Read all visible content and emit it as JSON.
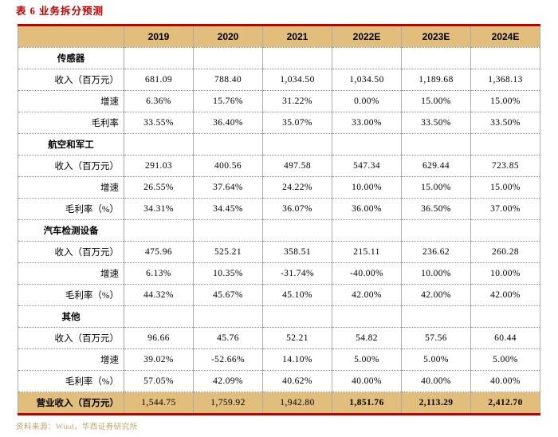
{
  "title": "表 6 业务拆分预测",
  "source_note": "资料来源：Wind，华西证券研究所",
  "colors": {
    "accent_red": "#C00000",
    "header_bg": "#E2BE7C",
    "source_text": "#BFA06A",
    "grid_vertical": "#ACACAC",
    "grid_horizontal": "#8F8F8F"
  },
  "table": {
    "columns": [
      "2019",
      "2020",
      "2021",
      "2022E",
      "2023E",
      "2024E"
    ],
    "rows": [
      {
        "type": "section",
        "label": "传感器",
        "values": [
          "",
          "",
          "",
          "",
          "",
          ""
        ]
      },
      {
        "type": "data",
        "label": "收入（百万元）",
        "values": [
          "681.09",
          "788.40",
          "1,034.50",
          "1,034.50",
          "1,189.68",
          "1,368.13"
        ]
      },
      {
        "type": "data",
        "label": "增速",
        "values": [
          "6.36%",
          "15.76%",
          "31.22%",
          "0.00%",
          "15.00%",
          "15.00%"
        ]
      },
      {
        "type": "data",
        "label": "毛利率",
        "values": [
          "33.55%",
          "36.40%",
          "35.07%",
          "33.00%",
          "33.50%",
          "33.50%"
        ]
      },
      {
        "type": "section",
        "label": "航空和军工",
        "values": [
          "",
          "",
          "",
          "",
          "",
          ""
        ]
      },
      {
        "type": "data",
        "label": "收入（百万元）",
        "values": [
          "291.03",
          "400.56",
          "497.58",
          "547.34",
          "629.44",
          "723.85"
        ]
      },
      {
        "type": "data",
        "label": "增速",
        "values": [
          "26.55%",
          "37.64%",
          "24.22%",
          "10.00%",
          "15.00%",
          "15.00%"
        ]
      },
      {
        "type": "data",
        "label": "毛利率（%）",
        "values": [
          "34.31%",
          "34.45%",
          "36.07%",
          "36.00%",
          "36.50%",
          "37.00%"
        ]
      },
      {
        "type": "section",
        "label": "汽车检测设备",
        "values": [
          "",
          "",
          "",
          "",
          "",
          ""
        ]
      },
      {
        "type": "data",
        "label": "收入（百万元）",
        "values": [
          "475.96",
          "525.21",
          "358.51",
          "215.11",
          "236.62",
          "260.28"
        ]
      },
      {
        "type": "data",
        "label": "增速",
        "values": [
          "6.13%",
          "10.35%",
          "-31.74%",
          "-40.00%",
          "10.00%",
          "10.00%"
        ]
      },
      {
        "type": "data",
        "label": "毛利率（%）",
        "values": [
          "44.32%",
          "45.67%",
          "45.10%",
          "42.00%",
          "42.00%",
          "42.00%"
        ]
      },
      {
        "type": "section",
        "label": "其他",
        "values": [
          "",
          "",
          "",
          "",
          "",
          ""
        ]
      },
      {
        "type": "data",
        "label": "收入（百万元）",
        "values": [
          "96.66",
          "45.76",
          "52.21",
          "54.82",
          "57.56",
          "60.44"
        ]
      },
      {
        "type": "data",
        "label": "增速",
        "values": [
          "39.02%",
          "-52.66%",
          "14.10%",
          "5.00%",
          "5.00%",
          "5.00%"
        ]
      },
      {
        "type": "data",
        "label": "毛利率（%）",
        "values": [
          "57.05%",
          "42.09%",
          "40.62%",
          "40.00%",
          "40.00%",
          "40.00%"
        ]
      },
      {
        "type": "total",
        "label": "营业收入（百万元）",
        "values": [
          "1,544.75",
          "1,759.92",
          "1,942.80",
          "1,851.76",
          "2,113.29",
          "2,412.70"
        ]
      }
    ]
  }
}
